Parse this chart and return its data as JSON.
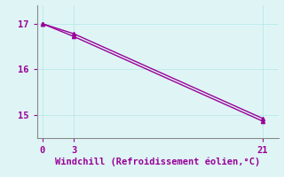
{
  "line1_x": [
    0,
    3,
    21
  ],
  "line1_y": [
    17.0,
    16.78,
    14.93
  ],
  "line2_x": [
    0,
    3,
    21
  ],
  "line2_y": [
    17.0,
    16.72,
    14.87
  ],
  "line_color": "#990099",
  "marker": "^",
  "markersize": 3,
  "linewidth": 1.0,
  "xlabel": "Windchill (Refroidissement éolien,°C)",
  "xlabel_fontsize": 7.5,
  "xlabel_color": "#990099",
  "xlim": [
    -0.5,
    22.5
  ],
  "ylim": [
    14.5,
    17.4
  ],
  "yticks": [
    15,
    16,
    17
  ],
  "xticks": [
    0,
    3,
    21
  ],
  "tick_color": "#990099",
  "tick_fontsize": 7.5,
  "grid_color": "#b8e8e8",
  "spine_color": "#888888",
  "background_color": "#dff5f5"
}
